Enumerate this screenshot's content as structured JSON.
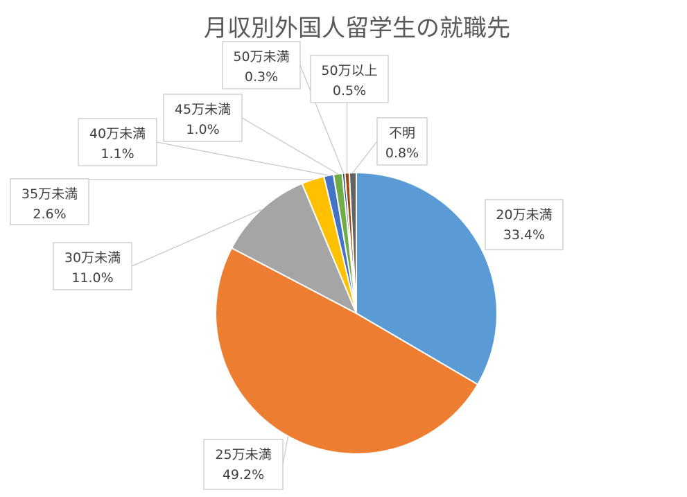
{
  "chart_data": {
    "type": "pie",
    "title": "月収別外国人留学生の就職先",
    "start_angle": "12 o'clock, clockwise",
    "slices": [
      {
        "name": "20万未満",
        "pct": "33.4%",
        "value": 33.4,
        "color": "#5B9BD5"
      },
      {
        "name": "25万未満",
        "pct": "49.2%",
        "value": 49.2,
        "color": "#ED7D31"
      },
      {
        "name": "30万未満",
        "pct": "11.0%",
        "value": 11.0,
        "color": "#A5A5A5"
      },
      {
        "name": "35万未満",
        "pct": "2.6%",
        "value": 2.6,
        "color": "#FFC000"
      },
      {
        "name": "40万未満",
        "pct": "1.1%",
        "value": 1.1,
        "color": "#4472C4"
      },
      {
        "name": "45万未満",
        "pct": "1.0%",
        "value": 1.0,
        "color": "#70AD47"
      },
      {
        "name": "50万未満",
        "pct": "0.3%",
        "value": 0.3,
        "color": "#264478"
      },
      {
        "name": "50万以上",
        "pct": "0.5%",
        "value": 0.5,
        "color": "#9E480E"
      },
      {
        "name": "不明",
        "pct": "0.8%",
        "value": 0.8,
        "color": "#636363"
      }
    ]
  }
}
